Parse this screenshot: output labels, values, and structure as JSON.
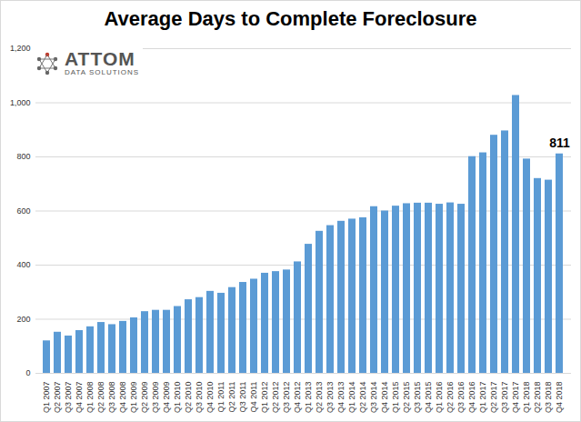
{
  "chart_data": {
    "type": "bar",
    "title": "Average Days to Complete Foreclosure",
    "logo": [
      "ATTOM",
      "DATA SOLUTIONS"
    ],
    "categories": [
      "Q1 2007",
      "Q2 2007",
      "Q3 2007",
      "Q4 2007",
      "Q1 2008",
      "Q2 2008",
      "Q3 2008",
      "Q4 2008",
      "Q1 2009",
      "Q2 2009",
      "Q3 2009",
      "Q4 2009",
      "Q1 2010",
      "Q2 2010",
      "Q3 2010",
      "Q4 2010",
      "Q1 2011",
      "Q2 2011",
      "Q3 2011",
      "Q4 2011",
      "Q1 2012",
      "Q2 2012",
      "Q3 2012",
      "Q4 2012",
      "Q1 2013",
      "Q2 2013",
      "Q3 2013",
      "Q4 2013",
      "Q1 2014",
      "Q2 2014",
      "Q3 2014",
      "Q4 2014",
      "Q1 2015",
      "Q2 2015",
      "Q3 2015",
      "Q4 2015",
      "Q1 2016",
      "Q2 2016",
      "Q3 2016",
      "Q4 2016",
      "Q1 2017",
      "Q2 2017",
      "Q3 2017",
      "Q4 2017",
      "Q1 2018",
      "Q2 2018",
      "Q3 2018",
      "Q4 2018"
    ],
    "values": [
      120,
      152,
      138,
      158,
      172,
      188,
      180,
      192,
      205,
      228,
      233,
      233,
      247,
      272,
      280,
      303,
      296,
      317,
      336,
      348,
      370,
      376,
      382,
      412,
      477,
      525,
      546,
      562,
      570,
      575,
      616,
      600,
      618,
      627,
      629,
      629,
      625,
      630,
      625,
      801,
      815,
      880,
      896,
      1027,
      792,
      720,
      714,
      811
    ],
    "annotations": [
      {
        "text": "811",
        "category": "Q4 2018",
        "value": 811
      }
    ],
    "color": "#5b9bd5",
    "ylim": [
      0,
      1200
    ],
    "yticks": [
      0,
      200,
      400,
      600,
      800,
      1000,
      1200
    ],
    "grid": true
  }
}
